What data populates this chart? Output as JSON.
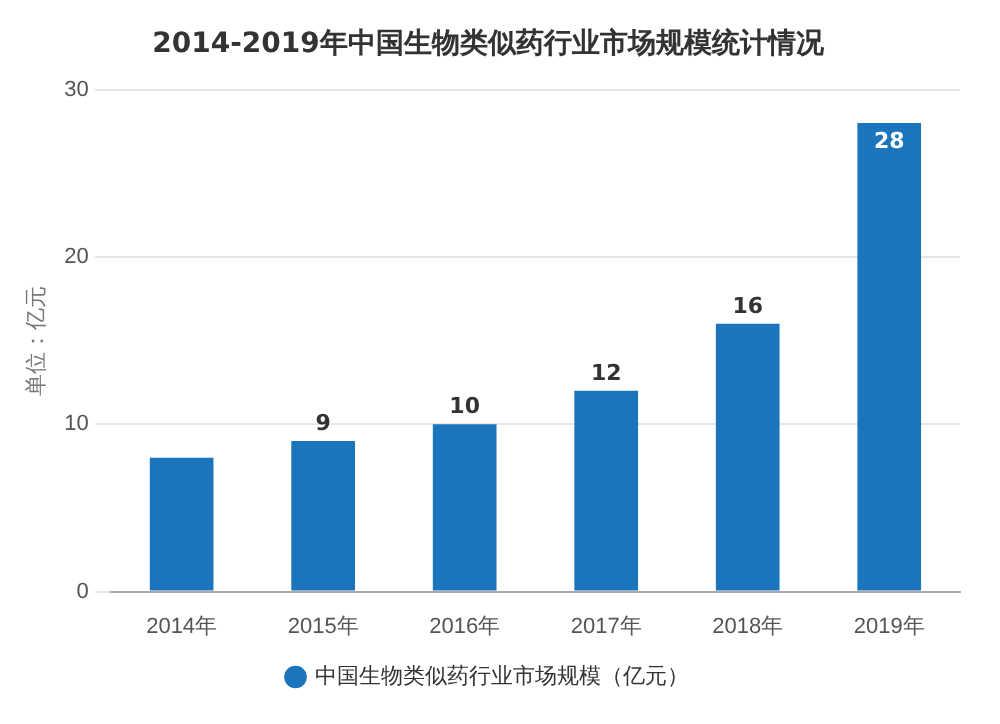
{
  "chart_data": {
    "type": "bar",
    "title": "2014-2019年中国生物类似药行业市场规模统计情况",
    "ylabel": "单位：亿元",
    "categories": [
      "2014年",
      "2015年",
      "2016年",
      "2017年",
      "2018年",
      "2019年"
    ],
    "series": [
      {
        "name": "中国生物类似药行业市场规模（亿元）",
        "color": "#1a75bc",
        "values": [
          8,
          9,
          10,
          12,
          16,
          28
        ],
        "value_labels": [
          null,
          "9",
          "10",
          "12",
          "16",
          "28"
        ]
      }
    ],
    "ylim": [
      0,
      30
    ],
    "yticks": [
      0,
      10,
      20,
      30
    ],
    "grid": "y",
    "legend": "bottom"
  }
}
